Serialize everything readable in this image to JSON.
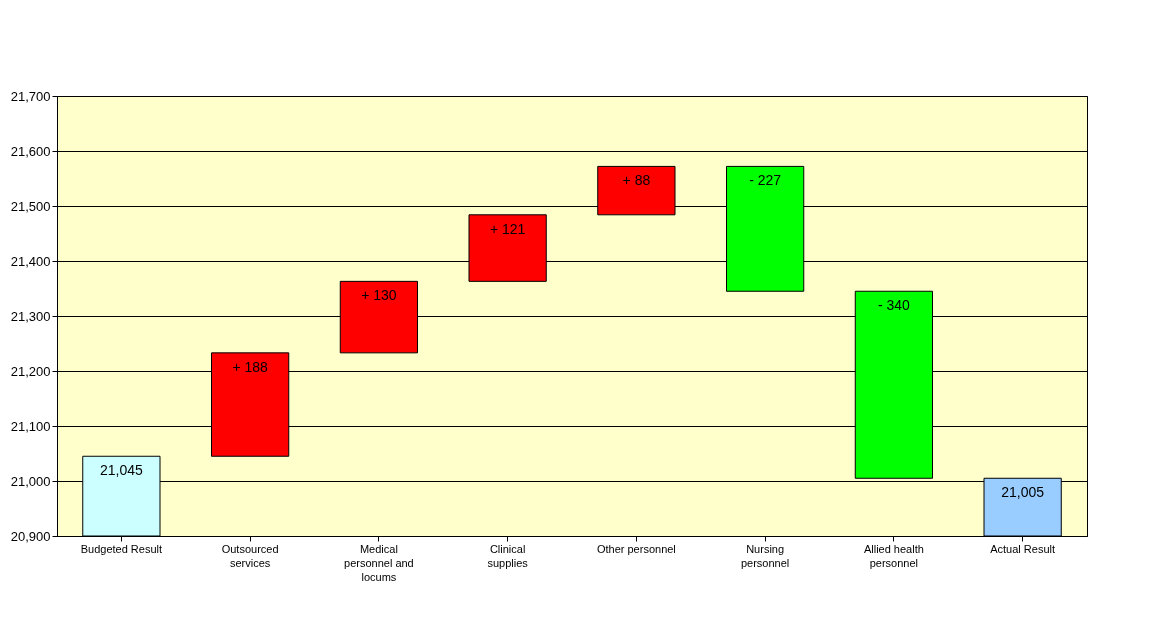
{
  "chart_data": {
    "type": "bar",
    "categories": [
      "Budgeted Result",
      "Outsourced services",
      "Medical personnel and locums",
      "Clinical supplies",
      "Other personnel",
      "Nursing personnel",
      "Allied health personnel",
      "Actual Result"
    ],
    "values": [
      21045,
      188,
      130,
      121,
      88,
      -227,
      -340,
      21005
    ],
    "base": [
      null,
      21045,
      21233,
      21363,
      21484,
      21572,
      21345,
      null
    ],
    "colors": [
      "#ccffff",
      "#ff0000",
      "#ff0000",
      "#ff0000",
      "#ff0000",
      "#00ff00",
      "#00ff00",
      "#99ccff"
    ],
    "value_labels": [
      "21,045",
      "+ 188",
      "+ 130",
      "+ 121",
      "+ 88",
      "- 227",
      "- 340",
      "21,005"
    ],
    "ylim": [
      20900,
      21700
    ],
    "yticks": [
      {
        "value": 20900,
        "label": "20,900"
      },
      {
        "value": 21000,
        "label": "21,000"
      },
      {
        "value": 21100,
        "label": "21,100"
      },
      {
        "value": 21200,
        "label": "21,200"
      },
      {
        "value": 21300,
        "label": "21,300"
      },
      {
        "value": 21400,
        "label": "21,400"
      },
      {
        "value": 21500,
        "label": "21,500"
      },
      {
        "value": 21600,
        "label": "21,600"
      },
      {
        "value": 21700,
        "label": "21,700"
      }
    ],
    "grid": "y"
  }
}
